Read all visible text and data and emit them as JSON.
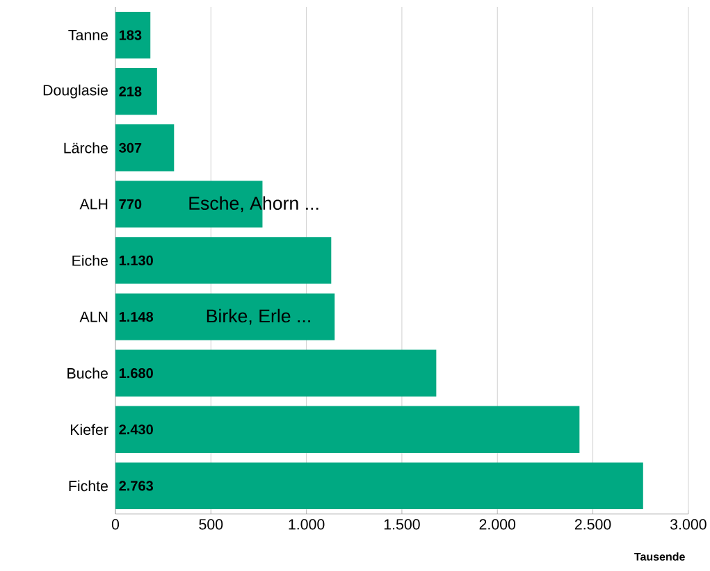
{
  "chart_data": {
    "type": "bar",
    "orientation": "horizontal",
    "categories": [
      "Tanne",
      "Douglasie",
      "Lärche",
      "ALH",
      "Eiche",
      "ALN",
      "Buche",
      "Kiefer",
      "Fichte"
    ],
    "values": [
      183,
      218,
      307,
      770,
      1130,
      1148,
      1680,
      2430,
      2763
    ],
    "value_labels": [
      "183",
      "218",
      "307",
      "770",
      "1.130",
      "1.148",
      "1.680",
      "2.430",
      "2.763"
    ],
    "color": "#00a982",
    "xlim": [
      0,
      3000
    ],
    "xticks": [
      {
        "value": 0,
        "label": "0"
      },
      {
        "value": 500,
        "label": "500"
      },
      {
        "value": 1000,
        "label": "1.000"
      },
      {
        "value": 1500,
        "label": "1.500"
      },
      {
        "value": 2000,
        "label": "2.000"
      },
      {
        "value": 2500,
        "label": "2.500"
      },
      {
        "value": 3000,
        "label": "3.000"
      }
    ],
    "xlabel": "Tausende",
    "grid": "x",
    "annotations": [
      {
        "text": "Esche, Ahorn ...",
        "x": 725,
        "y": "ALH"
      },
      {
        "text": "Birke, Erle ...",
        "x": 750,
        "y": "ALN"
      }
    ]
  }
}
